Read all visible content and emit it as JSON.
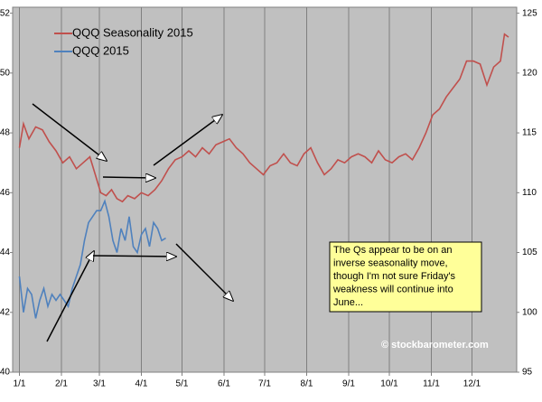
{
  "chart_data": {
    "type": "line",
    "xlim": [
      -5,
      367
    ],
    "xticks": [
      {
        "value": 0,
        "label": "1/1"
      },
      {
        "value": 31,
        "label": "2/1"
      },
      {
        "value": 59,
        "label": "3/1"
      },
      {
        "value": 90,
        "label": "4/1"
      },
      {
        "value": 120,
        "label": "5/1"
      },
      {
        "value": 151,
        "label": "6/1"
      },
      {
        "value": 181,
        "label": "7/1"
      },
      {
        "value": 212,
        "label": "8/1"
      },
      {
        "value": 243,
        "label": "9/1"
      },
      {
        "value": 273,
        "label": "10/1"
      },
      {
        "value": 304,
        "label": "11/1"
      },
      {
        "value": 334,
        "label": "12/1"
      }
    ],
    "ylim": [
      40,
      52.2
    ],
    "yticks": [
      40,
      42,
      44,
      46,
      48,
      50,
      52
    ],
    "y2lim": [
      95,
      125.5
    ],
    "y2ticks": [
      95,
      100,
      105,
      110,
      115,
      120,
      125
    ],
    "grid": true,
    "legend": "upper left",
    "series": [
      {
        "name": "QQQ Seasonality 2015",
        "color": "#c0504d",
        "x": [
          0,
          3,
          7,
          12,
          17,
          22,
          27,
          32,
          37,
          42,
          47,
          52,
          56,
          60,
          64,
          68,
          72,
          76,
          80,
          85,
          90,
          95,
          100,
          105,
          110,
          115,
          120,
          125,
          130,
          135,
          140,
          145,
          150,
          155,
          160,
          165,
          170,
          175,
          180,
          185,
          190,
          195,
          200,
          205,
          210,
          215,
          220,
          225,
          230,
          235,
          240,
          245,
          250,
          255,
          260,
          265,
          270,
          275,
          280,
          285,
          290,
          295,
          300,
          305,
          310,
          315,
          320,
          325,
          330,
          335,
          340,
          345,
          350,
          355,
          358,
          361
        ],
        "values": [
          47.5,
          48.3,
          47.8,
          48.2,
          48.1,
          47.7,
          47.4,
          47.0,
          47.2,
          46.8,
          47.0,
          47.2,
          46.6,
          46.0,
          45.9,
          46.1,
          45.8,
          45.7,
          45.9,
          45.8,
          46.0,
          45.9,
          46.1,
          46.4,
          46.8,
          47.1,
          47.2,
          47.4,
          47.2,
          47.5,
          47.3,
          47.6,
          47.7,
          47.8,
          47.5,
          47.3,
          47.0,
          46.8,
          46.6,
          46.9,
          47.0,
          47.3,
          47.0,
          46.9,
          47.3,
          47.5,
          47.0,
          46.6,
          46.8,
          47.1,
          47.0,
          47.2,
          47.3,
          47.2,
          47.0,
          47.4,
          47.1,
          47.0,
          47.2,
          47.3,
          47.1,
          47.5,
          48.0,
          48.6,
          48.8,
          49.2,
          49.5,
          49.8,
          50.4,
          50.4,
          50.3,
          49.6,
          50.2,
          50.4,
          51.3,
          51.2
        ]
      },
      {
        "name": "QQQ 2015",
        "color": "#4f81bd",
        "axis": "y2",
        "x": [
          0,
          3,
          6,
          9,
          12,
          15,
          18,
          21,
          24,
          27,
          30,
          33,
          36,
          39,
          42,
          45,
          48,
          51,
          54,
          57,
          60,
          63,
          66,
          69,
          72,
          75,
          78,
          81,
          84,
          87,
          90,
          93,
          96,
          99,
          102,
          105,
          108
        ],
        "values": [
          103,
          100,
          102,
          101.5,
          99.5,
          101,
          102,
          100.5,
          101.5,
          101,
          101.5,
          101,
          100.5,
          102,
          103,
          104,
          106,
          107.5,
          108,
          108.5,
          108.5,
          109.3,
          108,
          106,
          105,
          107,
          106,
          108,
          105.5,
          105,
          106.5,
          107,
          105.5,
          107.5,
          107,
          106,
          106.2
        ]
      }
    ],
    "annotation": [
      "The Qs appear to be on an",
      "inverse seasonality move,",
      "though I'm not sure Friday's",
      "weakness will continue into",
      "June..."
    ],
    "watermark": "© stockbarometer.com"
  }
}
